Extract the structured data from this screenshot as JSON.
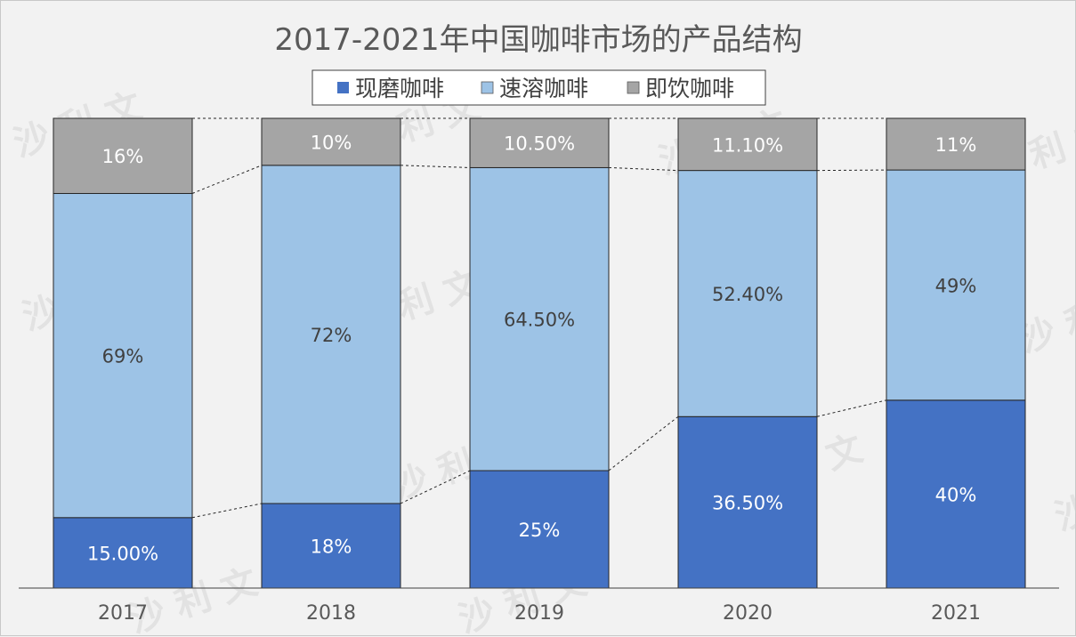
{
  "chart_data": {
    "type": "bar",
    "stacked": true,
    "title": "2017-2021年中国咖啡市场的产品结构",
    "categories": [
      "2017",
      "2018",
      "2019",
      "2020",
      "2021"
    ],
    "series": [
      {
        "name": "现磨咖啡",
        "color": "#4472c4",
        "values": [
          15.0,
          18,
          25,
          36.5,
          40
        ],
        "labels": [
          "15.00%",
          "18%",
          "25%",
          "36.50%",
          "40%"
        ]
      },
      {
        "name": "速溶咖啡",
        "color": "#9dc3e6",
        "values": [
          69,
          72,
          64.5,
          52.4,
          49
        ],
        "labels": [
          "69%",
          "72%",
          "64.50%",
          "52.40%",
          "49%"
        ]
      },
      {
        "name": "即饮咖啡",
        "color": "#a5a5a5",
        "values": [
          16,
          10,
          10.5,
          11.1,
          11
        ],
        "labels": [
          "16%",
          "10%",
          "10.50%",
          "11.10%",
          "11%"
        ]
      }
    ],
    "legend_position": "top",
    "gridlines": false,
    "series_lines": true
  },
  "watermark": {
    "text": "沙 利 文"
  }
}
